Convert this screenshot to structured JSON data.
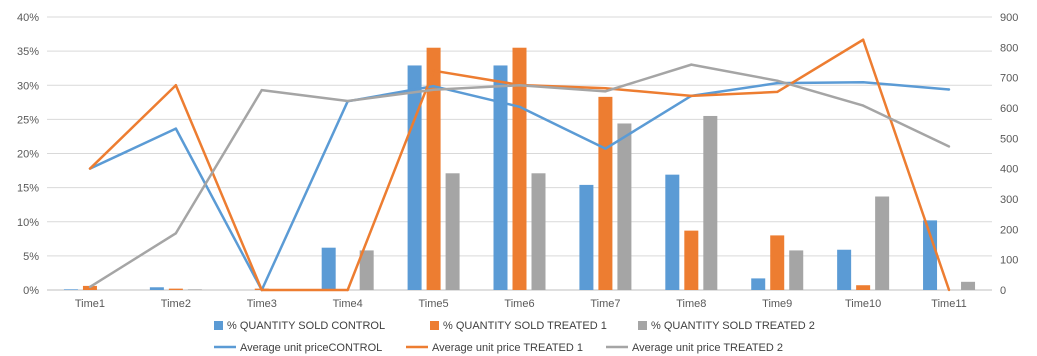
{
  "chart_data": {
    "type": "bar+line",
    "categories": [
      "Time1",
      "Time2",
      "Time3",
      "Time4",
      "Time5",
      "Time6",
      "Time7",
      "Time8",
      "Time9",
      "Time10",
      "Time11"
    ],
    "bar_series": [
      {
        "name": "% QUANTITY SOLD  CONTROL",
        "color": "#5b9bd5",
        "values": [
          0.1,
          0.4,
          0,
          6.2,
          32.9,
          32.9,
          15.4,
          16.9,
          1.7,
          5.9,
          10.2
        ]
      },
      {
        "name": "% QUANTITY SOLD TREATED 1",
        "color": "#ed7d31",
        "values": [
          0.6,
          0.2,
          0.2,
          0,
          35.5,
          35.5,
          28.3,
          8.7,
          8.0,
          0.7,
          0
        ]
      },
      {
        "name": "% QUANTITY SOLD  TREATED 2",
        "color": "#a5a5a5",
        "values": [
          0,
          0.1,
          0,
          5.8,
          17.1,
          17.1,
          24.4,
          25.5,
          5.8,
          13.7,
          1.2
        ]
      }
    ],
    "line_series": [
      {
        "name": "Average unit priceCONTROL",
        "color": "#5b9bd5",
        "values": [
          400,
          532,
          0,
          622,
          672,
          604,
          466,
          640,
          682,
          685,
          661
        ]
      },
      {
        "name": "Average unit price TREATED 1",
        "color": "#ed7d31",
        "values": [
          400,
          675,
          0,
          0,
          723,
          676,
          665,
          640,
          653,
          825,
          0
        ]
      },
      {
        "name": "Average unit price TREATED 2",
        "color": "#a5a5a5",
        "values": [
          10,
          187,
          659,
          623,
          660,
          675,
          655,
          743,
          690,
          608,
          473
        ]
      }
    ],
    "y_left": {
      "min": 0,
      "max": 40,
      "step": 5,
      "ticks": [
        "0%",
        "5%",
        "10%",
        "15%",
        "20%",
        "25%",
        "30%",
        "35%",
        "40%"
      ]
    },
    "y_right": {
      "min": 0,
      "max": 900,
      "step": 100,
      "ticks": [
        "0",
        "100",
        "200",
        "300",
        "400",
        "500",
        "600",
        "700",
        "800",
        "900"
      ]
    },
    "grid": true,
    "legend_position": "bottom",
    "title": "",
    "xlabel": "",
    "ylabel": ""
  }
}
